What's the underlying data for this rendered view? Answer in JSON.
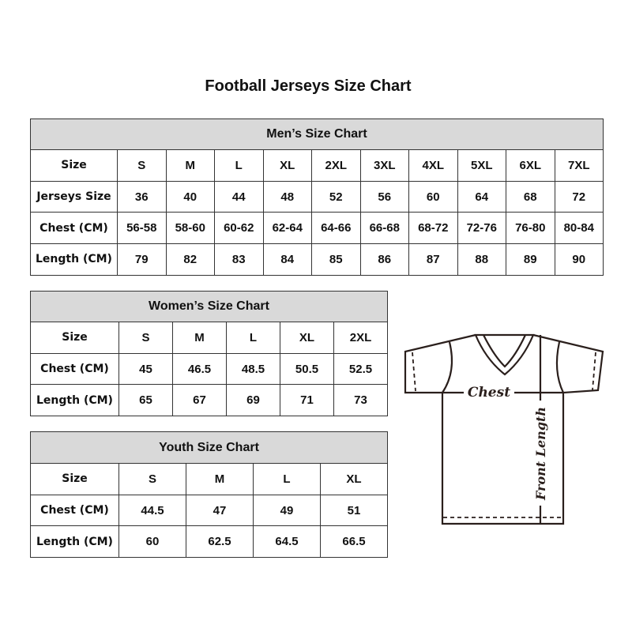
{
  "title": "Football Jerseys Size Chart",
  "men": {
    "heading": "Men’s Size Chart",
    "rows": [
      {
        "label": "Size",
        "values": [
          "S",
          "M",
          "L",
          "XL",
          "2XL",
          "3XL",
          "4XL",
          "5XL",
          "6XL",
          "7XL"
        ]
      },
      {
        "label": "Jerseys Size",
        "values": [
          "36",
          "40",
          "44",
          "48",
          "52",
          "56",
          "60",
          "64",
          "68",
          "72"
        ]
      },
      {
        "label": "Chest (CM)",
        "values": [
          "56-58",
          "58-60",
          "60-62",
          "62-64",
          "64-66",
          "66-68",
          "68-72",
          "72-76",
          "76-80",
          "80-84"
        ]
      },
      {
        "label": "Length (CM)",
        "values": [
          "79",
          "82",
          "83",
          "84",
          "85",
          "86",
          "87",
          "88",
          "89",
          "90"
        ]
      }
    ]
  },
  "women": {
    "heading": "Women’s Size Chart",
    "rows": [
      {
        "label": "Size",
        "values": [
          "S",
          "M",
          "L",
          "XL",
          "2XL"
        ]
      },
      {
        "label": "Chest (CM)",
        "values": [
          "45",
          "46.5",
          "48.5",
          "50.5",
          "52.5"
        ]
      },
      {
        "label": "Length (CM)",
        "values": [
          "65",
          "67",
          "69",
          "71",
          "73"
        ]
      }
    ]
  },
  "youth": {
    "heading": "Youth Size Chart",
    "rows": [
      {
        "label": "Size",
        "values": [
          "S",
          "M",
          "L",
          "XL"
        ]
      },
      {
        "label": "Chest (CM)",
        "values": [
          "44.5",
          "47",
          "49",
          "51"
        ]
      },
      {
        "label": "Length (CM)",
        "values": [
          "60",
          "62.5",
          "64.5",
          "66.5"
        ]
      }
    ]
  },
  "diagram": {
    "chest_label": "Chest",
    "length_label": "Front Length"
  }
}
